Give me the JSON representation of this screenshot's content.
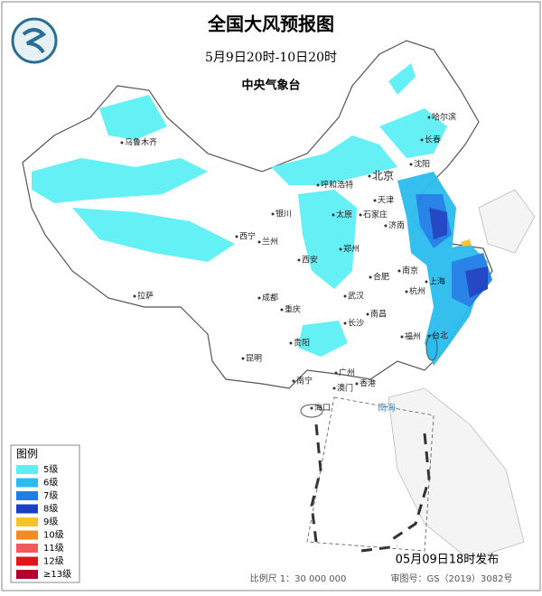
{
  "header": {
    "title": "全国大风预报图",
    "period": "5月9日20时-10日20时",
    "issuer": "中央气象台"
  },
  "legend": {
    "title": "图例",
    "levels": [
      {
        "label": "5级",
        "color": "#5cf0f5"
      },
      {
        "label": "6级",
        "color": "#2bbcef"
      },
      {
        "label": "7级",
        "color": "#1f7ee6"
      },
      {
        "label": "8级",
        "color": "#1a3fc2"
      },
      {
        "label": "9级",
        "color": "#f5c42a"
      },
      {
        "label": "10级",
        "color": "#f58a24"
      },
      {
        "label": "11级",
        "color": "#f05a5a"
      },
      {
        "label": "12级",
        "color": "#e0161b"
      },
      {
        "label": "≥13级",
        "color": "#b3002c"
      }
    ]
  },
  "cities": [
    "乌鲁木齐",
    "哈尔滨",
    "长春",
    "沈阳",
    "北京",
    "天津",
    "呼和浩特",
    "石家庄",
    "太原",
    "济南",
    "银川",
    "西宁",
    "兰州",
    "郑州",
    "西安",
    "合肥",
    "南京",
    "上海",
    "杭州",
    "武汉",
    "成都",
    "重庆",
    "长沙",
    "南昌",
    "福州",
    "台北",
    "拉萨",
    "贵阳",
    "昆明",
    "南宁",
    "广州",
    "澳门",
    "香港",
    "海口"
  ],
  "sea_label": "南海",
  "footer": {
    "issued": "05月09日18时发布",
    "scale": "比例尺 1：30 000 000",
    "review": "审图号：GS（2019）3082号"
  }
}
